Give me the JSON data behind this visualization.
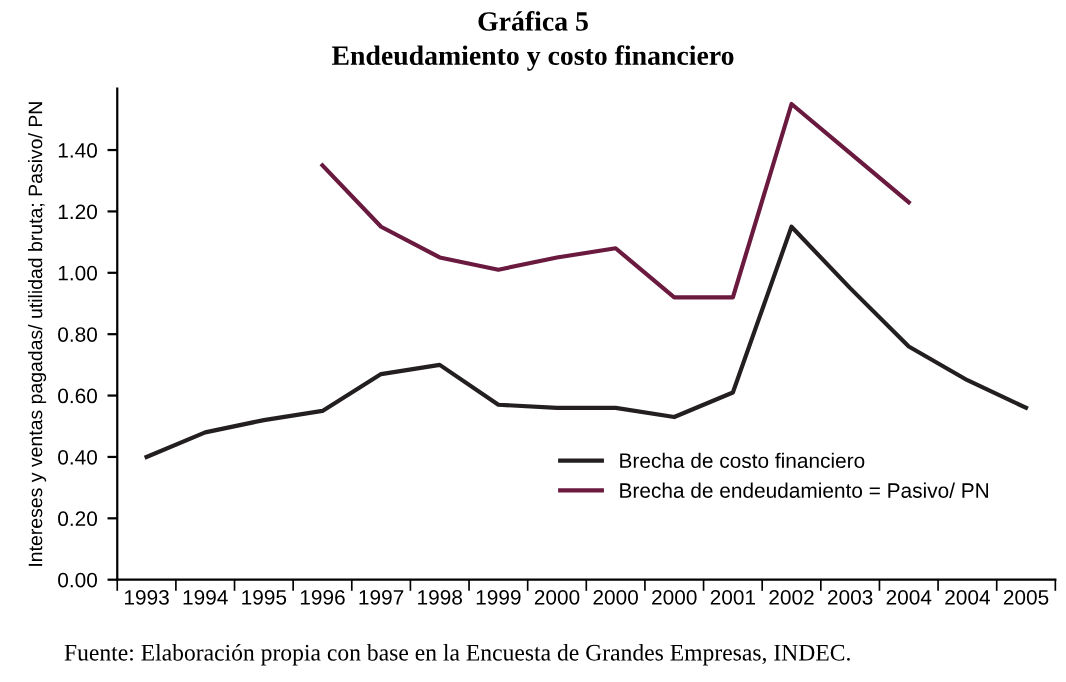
{
  "chart_data": {
    "type": "line",
    "title": "Gráfica 5",
    "subtitle": "Endeudamiento y costo financiero",
    "ylabel": "Intereses y ventas pagadas/ utilidad bruta; Pasivo/ PN",
    "categories": [
      "1993",
      "1994",
      "1995",
      "1996",
      "1997",
      "1998",
      "1999",
      "2000",
      "2000",
      "2000",
      "2001",
      "2002",
      "2003",
      "2004",
      "2004",
      "2005"
    ],
    "ylim": [
      0,
      1.6
    ],
    "yticks": [
      {
        "value": 0,
        "label": "0.00"
      },
      {
        "value": 0.2,
        "label": "0.20"
      },
      {
        "value": 0.4,
        "label": "0.40"
      },
      {
        "value": 0.6,
        "label": "0.60"
      },
      {
        "value": 0.8,
        "label": "0.80"
      },
      {
        "value": 1.0,
        "label": "1.00"
      },
      {
        "value": 1.2,
        "label": "1.20"
      },
      {
        "value": 1.4,
        "label": "1.40"
      }
    ],
    "series": [
      {
        "name": "Brecha de costo financiero",
        "color": "#231f20",
        "values": [
          0.4,
          0.48,
          0.52,
          0.55,
          0.67,
          0.7,
          0.57,
          0.56,
          0.56,
          0.53,
          0.61,
          1.15,
          0.95,
          0.76,
          0.65,
          0.56
        ]
      },
      {
        "name": "Brecha de endeudamiento = Pasivo/ PN",
        "color": "#6b1a3f",
        "values": [
          null,
          null,
          null,
          1.35,
          1.15,
          1.05,
          1.01,
          1.05,
          1.08,
          0.92,
          0.92,
          1.55,
          1.39,
          1.23,
          null,
          null
        ]
      }
    ],
    "legend": "lower right",
    "grid": false,
    "marker": "none",
    "line_style": "solid",
    "annotations": [
      "Fuente: Elaboración propia con base en la Encuesta de Grandes Empresas, INDEC."
    ]
  }
}
